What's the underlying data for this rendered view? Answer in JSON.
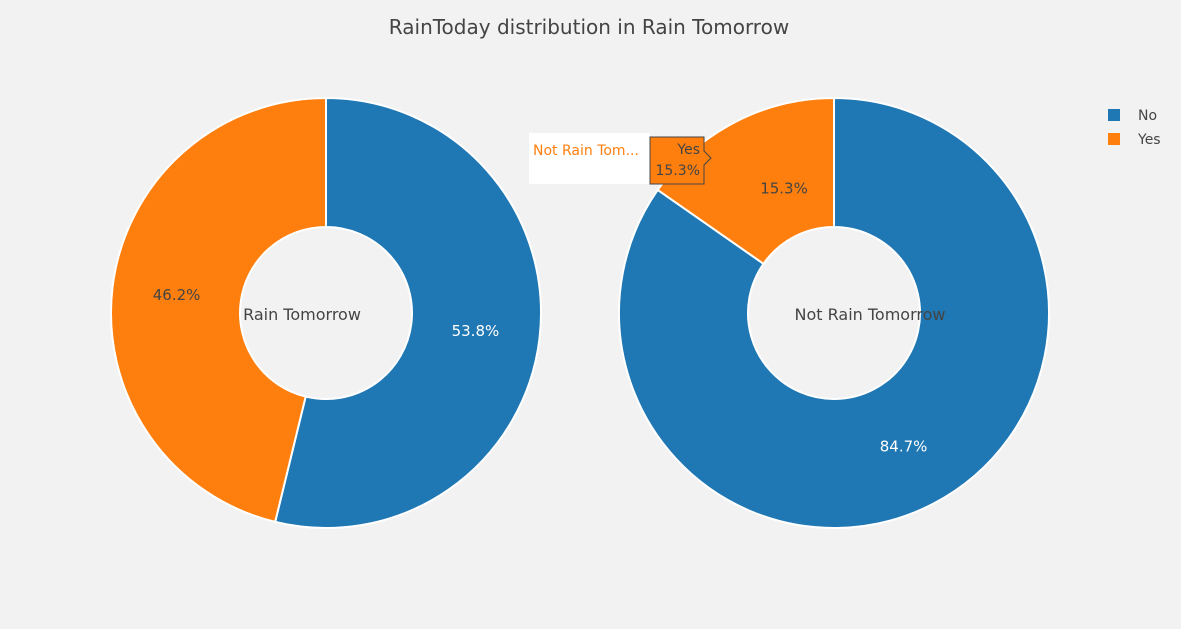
{
  "colors": {
    "background": "#f2f2f2",
    "no": "#1f77b4",
    "yes": "#ff7f0e",
    "slice_border": "#ffffff",
    "text_dark": "#444444",
    "text_light": "#ffffff"
  },
  "chart_data": {
    "type": "pie",
    "title": "RainToday distribution in Rain Tomorrow",
    "hole": 0.4,
    "legend": {
      "placement": "top-right",
      "entries": [
        {
          "label": "No",
          "color_key": "no"
        },
        {
          "label": "Yes",
          "color_key": "yes"
        }
      ]
    },
    "charts": [
      {
        "center_label": "Rain Tomorrow",
        "slices": [
          {
            "label": "No",
            "value": 53.8,
            "text": "53.8%"
          },
          {
            "label": "Yes",
            "value": 46.2,
            "text": "46.2%"
          }
        ]
      },
      {
        "center_label": "Not Rain Tomorrow",
        "slices": [
          {
            "label": "No",
            "value": 84.7,
            "text": "84.7%"
          },
          {
            "label": "Yes",
            "value": 15.3,
            "text": "15.3%"
          }
        ]
      }
    ],
    "hover": {
      "trace_name": "Not Rain Tom...",
      "label": "Yes",
      "text": "15.3%"
    }
  }
}
